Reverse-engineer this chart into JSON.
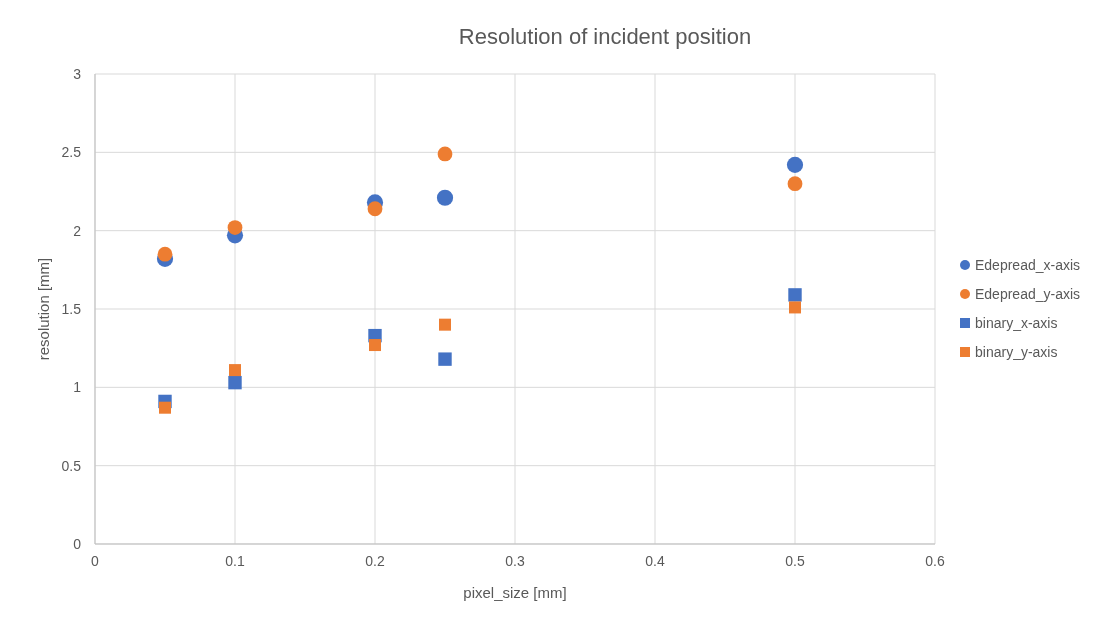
{
  "chart_data": {
    "type": "scatter",
    "title": "Resolution of incident position",
    "xlabel": "pixel_size [mm]",
    "ylabel": "resolution [mm]",
    "x": [
      0.05,
      0.1,
      0.2,
      0.25,
      0.5
    ],
    "series": [
      {
        "name": "Edepread_x-axis",
        "color": "#4472c4",
        "marker": "circle",
        "values": [
          1.82,
          1.97,
          2.18,
          2.21,
          2.42
        ]
      },
      {
        "name": "Edepread_y-axis",
        "color": "#ed7d31",
        "marker": "circle",
        "values": [
          1.85,
          2.02,
          2.14,
          2.49,
          2.3
        ]
      },
      {
        "name": "binary_x-axis",
        "color": "#4472c4",
        "marker": "square",
        "values": [
          0.91,
          1.03,
          1.33,
          1.18,
          1.59
        ]
      },
      {
        "name": "binary_y-axis",
        "color": "#ed7d31",
        "marker": "square",
        "values": [
          0.87,
          1.11,
          1.27,
          1.4,
          1.51
        ]
      }
    ],
    "xlim": [
      0,
      0.6
    ],
    "xticks": [
      0,
      0.1,
      0.2,
      0.3,
      0.4,
      0.5,
      0.6
    ],
    "ylim": [
      0,
      3
    ],
    "yticks": [
      0,
      0.5,
      1,
      1.5,
      2,
      2.5,
      3
    ],
    "grid": true,
    "legend": "right"
  }
}
